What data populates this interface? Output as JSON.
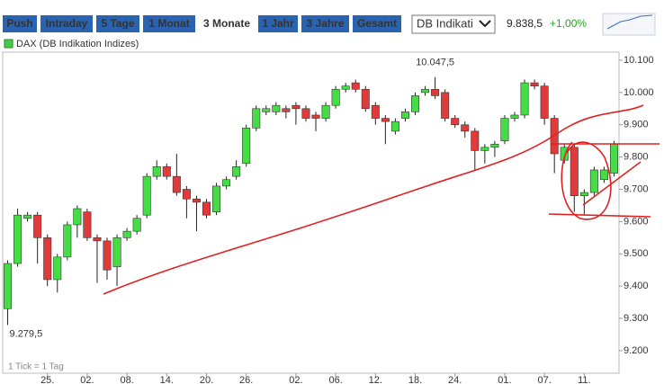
{
  "toolbar": {
    "buttons": [
      "Push",
      "Intraday",
      "5 Tage",
      "1 Monat",
      "3 Monate",
      "1 Jahr",
      "3 Jahre",
      "Gesamt"
    ],
    "selected": 4,
    "dropdown": "DB Indikati",
    "price": "9.838,5",
    "change": "+1,00%"
  },
  "chart_data": {
    "type": "candlestick",
    "legend": "DAX (DB Indikation Indizes)",
    "legend_color": "#44cc44",
    "up_color": "#44dd44",
    "down_color": "#e03a3a",
    "footnote": "1 Tick = 1 Tag",
    "categories": [
      null,
      null,
      null,
      null,
      "25.",
      null,
      null,
      null,
      "02.",
      null,
      null,
      null,
      "08.",
      null,
      null,
      null,
      "14.",
      null,
      null,
      null,
      "20.",
      null,
      null,
      null,
      "26.",
      null,
      null,
      null,
      null,
      "02.",
      null,
      null,
      null,
      "06.",
      null,
      null,
      null,
      "12.",
      null,
      null,
      null,
      "18.",
      null,
      null,
      null,
      "24.",
      null,
      null,
      null,
      null,
      "01.",
      null,
      null,
      null,
      "07.",
      null,
      null,
      null,
      "11.",
      null,
      null,
      null
    ],
    "open": [
      9330,
      9470,
      9610,
      9620,
      9550,
      9420,
      9490,
      9590,
      9630,
      9550,
      9540,
      9460,
      9550,
      9570,
      9620,
      9740,
      9770,
      9740,
      9700,
      9670,
      9660,
      9630,
      9710,
      9740,
      9780,
      9890,
      9940,
      9940,
      9950,
      9960,
      9950,
      9930,
      9920,
      9960,
      10010,
      10030,
      10010,
      9960,
      9920,
      9880,
      9920,
      9940,
      10000,
      10010,
      10000,
      9920,
      9900,
      9880,
      9820,
      9830,
      9850,
      9920,
      9930,
      10030,
      10020,
      9920,
      9790,
      9830,
      9680,
      9690,
      9730,
      9750
    ],
    "high": [
      9480,
      9640,
      9630,
      9630,
      9560,
      9500,
      9600,
      9650,
      9640,
      9560,
      9550,
      9560,
      9580,
      9620,
      9750,
      9790,
      9780,
      9810,
      9710,
      9680,
      9670,
      9720,
      9740,
      9790,
      9900,
      9960,
      9960,
      9970,
      9960,
      9970,
      9960,
      9940,
      9970,
      10020,
      10030,
      10040,
      10020,
      9970,
      9930,
      9920,
      9950,
      10000,
      10020,
      10047.5,
      10010,
      9930,
      9910,
      9890,
      9840,
      9850,
      9930,
      9940,
      10040,
      10040,
      10030,
      9930,
      9840,
      9840,
      9700,
      9770,
      9770,
      9850
    ],
    "low": [
      9279.5,
      9460,
      9600,
      9470,
      9400,
      9380,
      9480,
      9550,
      9540,
      9410,
      9420,
      9400,
      9540,
      9560,
      9610,
      9730,
      9730,
      9680,
      9610,
      9570,
      9610,
      9620,
      9700,
      9730,
      9770,
      9880,
      9930,
      9930,
      9920,
      9900,
      9910,
      9880,
      9910,
      9950,
      10000,
      10000,
      9940,
      9900,
      9840,
      9870,
      9910,
      9930,
      9990,
      9980,
      9910,
      9890,
      9860,
      9760,
      9780,
      9800,
      9840,
      9910,
      9920,
      10010,
      9900,
      9750,
      9780,
      9630,
      9620,
      9680,
      9720,
      9740
    ],
    "close": [
      9470,
      9620,
      9620,
      9550,
      9420,
      9490,
      9590,
      9640,
      9550,
      9540,
      9450,
      9550,
      9570,
      9610,
      9740,
      9770,
      9740,
      9690,
      9670,
      9660,
      9620,
      9710,
      9730,
      9770,
      9890,
      9950,
      9950,
      9960,
      9940,
      9950,
      9920,
      9920,
      9960,
      10010,
      10020,
      10010,
      9950,
      9920,
      9910,
      9910,
      9940,
      9990,
      10010,
      9990,
      9920,
      9900,
      9880,
      9820,
      9830,
      9840,
      9920,
      9930,
      10030,
      10020,
      9920,
      9810,
      9830,
      9680,
      9690,
      9760,
      9760,
      9840
    ],
    "ylim": [
      9130,
      10125
    ],
    "yticks": [
      {
        "value": 9200,
        "label": "9.200"
      },
      {
        "value": 9300,
        "label": "9.300"
      },
      {
        "value": 9400,
        "label": "9.400"
      },
      {
        "value": 9500,
        "label": "9.500"
      },
      {
        "value": 9600,
        "label": "9.600"
      },
      {
        "value": 9700,
        "label": "9.700"
      },
      {
        "value": 9800,
        "label": "9.800"
      },
      {
        "value": 9900,
        "label": "9.900"
      },
      {
        "value": 10000,
        "label": "10.000"
      },
      {
        "value": 10100,
        "label": "10.100"
      }
    ],
    "annotations": [
      {
        "text": "10.047,5",
        "value": 10047.5,
        "index": 43
      },
      {
        "text": "9.279,5",
        "value": 9279.5,
        "index": 0
      }
    ]
  }
}
